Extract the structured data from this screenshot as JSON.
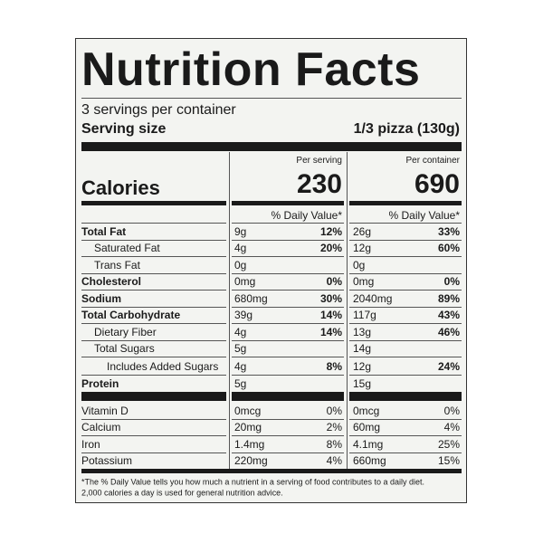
{
  "label": {
    "title": "Nutrition Facts",
    "servings": "3 servings per container",
    "serving_size_label": "Serving size",
    "serving_size": "1/3 pizza (130g)",
    "per_serving": "Per serving",
    "per_container": "Per container",
    "calories_label": "Calories",
    "calories_serving": "230",
    "calories_container": "690",
    "dv_header": "% Daily Value*",
    "rows": [
      [
        "Total Fat",
        "9g",
        "12%",
        "26g",
        "33%"
      ],
      [
        "Saturated Fat",
        "4g",
        "20%",
        "12g",
        "60%"
      ],
      [
        "Trans Fat",
        "0g",
        null,
        "0g",
        null
      ],
      [
        "Cholesterol",
        "0mg",
        "0%",
        "0mg",
        "0%"
      ],
      [
        "Sodium",
        "680mg",
        "30%",
        "2040mg",
        "89%"
      ],
      [
        "Total Carbohydrate",
        "39g",
        "14%",
        "117g",
        "43%"
      ],
      [
        "Dietary Fiber",
        "4g",
        "14%",
        "13g",
        "46%"
      ],
      [
        "Total Sugars",
        "5g",
        null,
        "14g",
        null
      ],
      [
        "Includes Added Sugars",
        "4g",
        "8%",
        "12g",
        "24%"
      ],
      [
        "Protein",
        "5g",
        null,
        "15g",
        null
      ]
    ],
    "vitamins": [
      [
        "Vitamin D",
        "0mcg",
        "0%",
        "0mcg",
        "0%"
      ],
      [
        "Calcium",
        "20mg",
        "2%",
        "60mg",
        "4%"
      ],
      [
        "Iron",
        "1.4mg",
        "8%",
        "4.1mg",
        "25%"
      ],
      [
        "Potassium",
        "220mg",
        "4%",
        "660mg",
        "15%"
      ]
    ],
    "footnote": [
      "*The % Daily Value tells you how much a nutrient in a serving of food contributes to a daily diet.",
      "2,000 calories a day is used for general nutrition advice."
    ]
  }
}
